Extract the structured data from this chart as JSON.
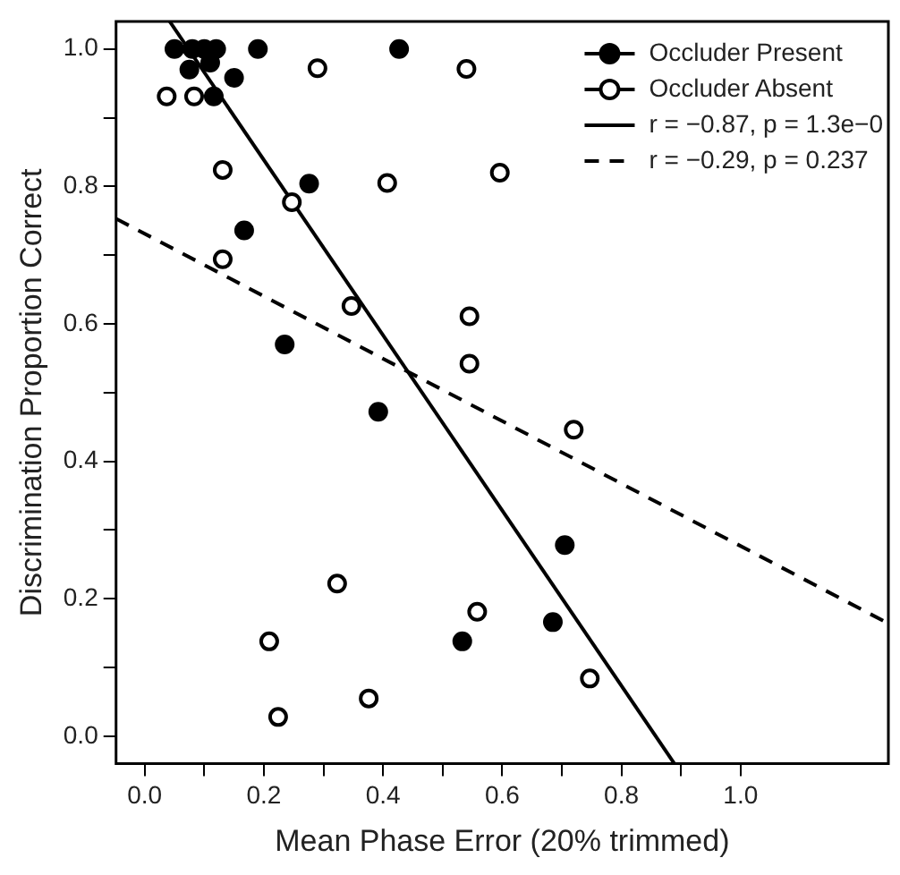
{
  "chart_data": {
    "type": "scatter",
    "xlabel": "Mean Phase Error (20% trimmed)",
    "ylabel": "Discrimination Proportion Correct",
    "xlim": [
      -0.048,
      1.248
    ],
    "ylim": [
      -0.04,
      1.04
    ],
    "xticks": [
      {
        "value": 0,
        "label": "0.0"
      },
      {
        "value": 0.1,
        "label": null
      },
      {
        "value": 0.2,
        "label": "0.2"
      },
      {
        "value": 0.3,
        "label": null
      },
      {
        "value": 0.4,
        "label": "0.4"
      },
      {
        "value": 0.5,
        "label": null
      },
      {
        "value": 0.6,
        "label": "0.6"
      },
      {
        "value": 0.7,
        "label": null
      },
      {
        "value": 0.8,
        "label": "0.8"
      },
      {
        "value": 0.9,
        "label": null
      },
      {
        "value": 1,
        "label": "1.0"
      }
    ],
    "yticks": [
      {
        "value": 0,
        "label": "0.0"
      },
      {
        "value": 0.1,
        "label": null
      },
      {
        "value": 0.2,
        "label": "0.2"
      },
      {
        "value": 0.3,
        "label": null
      },
      {
        "value": 0.4,
        "label": "0.4"
      },
      {
        "value": 0.5,
        "label": null
      },
      {
        "value": 0.6,
        "label": "0.6"
      },
      {
        "value": 0.7,
        "label": null
      },
      {
        "value": 0.8,
        "label": "0.8"
      },
      {
        "value": 0.9,
        "label": null
      },
      {
        "value": 1,
        "label": "1.0"
      }
    ],
    "grid": false,
    "legend": "top right",
    "marker": "circle",
    "series": [
      {
        "name": "Occluder Present",
        "color": "#000000",
        "x": [
          0.05,
          0.08,
          0.1,
          0.12,
          0.11,
          0.075,
          0.19,
          0.427,
          0.15,
          0.116,
          0.276,
          0.167,
          0.235,
          0.392,
          0.705,
          0.685,
          0.533
        ],
        "values": [
          1.0,
          1.0,
          1.0,
          1.0,
          0.98,
          0.97,
          1.0,
          1.0,
          0.958,
          0.931,
          0.804,
          0.736,
          0.57,
          0.472,
          0.278,
          0.166,
          0.138
        ]
      },
      {
        "name": "Occluder Absent",
        "color": "#ffffff",
        "x": [
          0.037,
          0.083,
          0.29,
          0.131,
          0.407,
          0.247,
          0.131,
          0.347,
          0.54,
          0.596,
          0.545,
          0.545,
          0.72,
          0.323,
          0.209,
          0.224,
          0.376,
          0.558,
          0.747
        ],
        "values": [
          0.931,
          0.931,
          0.972,
          0.824,
          0.805,
          0.777,
          0.694,
          0.626,
          0.971,
          0.82,
          0.611,
          0.542,
          0.446,
          0.222,
          0.138,
          0.028,
          0.055,
          0.181,
          0.084
        ]
      },
      {
        "name": "r = −0.87, p = 1.3e−0",
        "type": "line",
        "color": "#000000",
        "marker": "none",
        "line_style": "solid",
        "x": [
          0.042,
          0.889
        ],
        "values": [
          1.04,
          -0.04
        ]
      },
      {
        "name": "r = −0.29, p = 0.237",
        "type": "line",
        "color": "#000000",
        "marker": "none",
        "line_style": "dashed",
        "x": [
          -0.048,
          1.248
        ],
        "values": [
          0.753,
          0.164
        ]
      }
    ]
  }
}
